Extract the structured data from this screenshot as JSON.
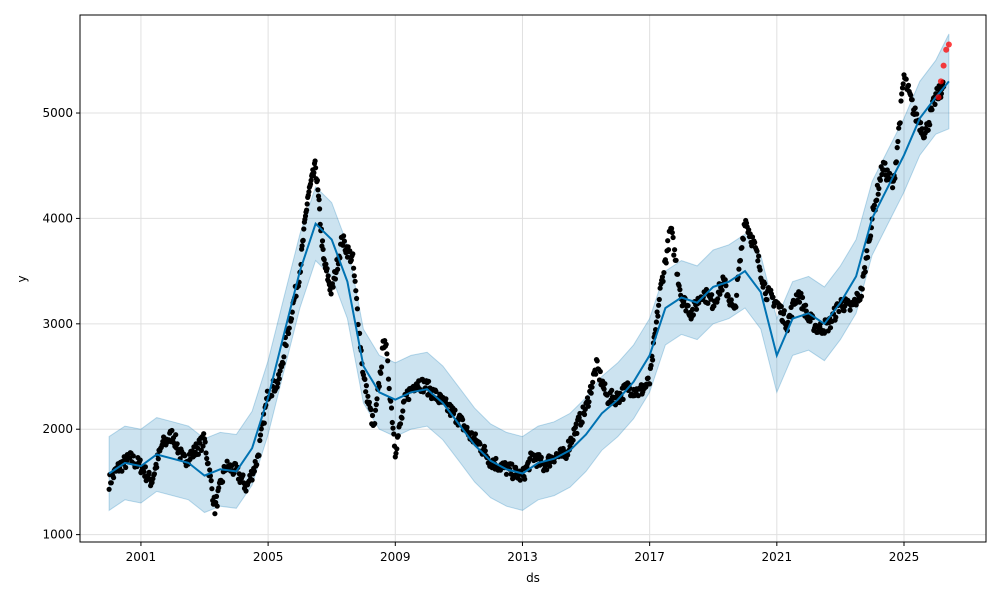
{
  "chart_data": {
    "type": "scatter",
    "title": "",
    "xlabel": "ds",
    "ylabel": "y",
    "xlim": [
      "1999-02-01",
      "2027-08-01"
    ],
    "ylim": [
      930,
      5930
    ],
    "xticks": [
      {
        "label": "2001",
        "value": "2001-01-01"
      },
      {
        "label": "2005",
        "value": "2005-01-01"
      },
      {
        "label": "2009",
        "value": "2009-01-01"
      },
      {
        "label": "2013",
        "value": "2013-01-01"
      },
      {
        "label": "2017",
        "value": "2017-01-01"
      },
      {
        "label": "2021",
        "value": "2021-01-01"
      },
      {
        "label": "2025",
        "value": "2025-01-01"
      }
    ],
    "yticks": [
      1000,
      2000,
      3000,
      4000,
      5000
    ],
    "grid": true,
    "colors": {
      "observed": "#000000",
      "forecast_points": "#ff0000",
      "trend_line": "#0072b2",
      "uncertainty_band": "#0072b2",
      "grid": "#e0e0e0"
    },
    "series": [
      {
        "role": "observed",
        "x": [
          "2000-01-01",
          "2000-05-01",
          "2000-09-01",
          "2001-01-01",
          "2001-05-01",
          "2001-09-01",
          "2002-01-01",
          "2002-05-01",
          "2002-09-01",
          "2003-01-01",
          "2003-05-01",
          "2003-09-01",
          "2004-01-01",
          "2004-05-01",
          "2004-09-01",
          "2005-01-01",
          "2005-05-01",
          "2005-09-01",
          "2006-01-01",
          "2006-04-01",
          "2006-07-01",
          "2006-10-01",
          "2007-01-01",
          "2007-05-01",
          "2007-09-01",
          "2008-01-01",
          "2008-05-01",
          "2008-09-01",
          "2009-01-01",
          "2009-05-01",
          "2009-09-01",
          "2010-01-01",
          "2010-05-01",
          "2010-09-01",
          "2011-01-01",
          "2011-05-01",
          "2011-09-01",
          "2012-01-01",
          "2012-05-01",
          "2012-09-01",
          "2013-01-01",
          "2013-05-01",
          "2013-09-01",
          "2014-01-01",
          "2014-05-01",
          "2014-09-01",
          "2015-01-01",
          "2015-05-01",
          "2015-09-01",
          "2016-01-01",
          "2016-05-01",
          "2016-09-01",
          "2017-01-01",
          "2017-05-01",
          "2017-09-01",
          "2018-01-01",
          "2018-05-01",
          "2018-09-01",
          "2019-01-01",
          "2019-05-01",
          "2019-09-01",
          "2020-01-01",
          "2020-05-01",
          "2020-09-01",
          "2021-01-01",
          "2021-05-01",
          "2021-09-01",
          "2022-01-01",
          "2022-05-01",
          "2022-09-01",
          "2023-01-01",
          "2023-05-01",
          "2023-09-01",
          "2024-01-01",
          "2024-05-01",
          "2024-09-01",
          "2025-01-01",
          "2025-05-01",
          "2025-09-01",
          "2026-01-01",
          "2026-04-01"
        ],
        "y": [
          1500,
          1650,
          1720,
          1650,
          1500,
          1850,
          1950,
          1700,
          1780,
          1900,
          1250,
          1650,
          1600,
          1450,
          1720,
          2350,
          2450,
          3000,
          3500,
          4200,
          4500,
          3600,
          3300,
          3800,
          3600,
          2500,
          2000,
          2900,
          1800,
          2300,
          2450,
          2400,
          2300,
          2200,
          2100,
          1950,
          1850,
          1700,
          1650,
          1600,
          1550,
          1750,
          1650,
          1750,
          1750,
          2000,
          2200,
          2600,
          2300,
          2300,
          2400,
          2350,
          2450,
          3300,
          3900,
          3250,
          3100,
          3300,
          3200,
          3400,
          3100,
          4000,
          3700,
          3300,
          3200,
          3000,
          3300,
          3050,
          2950,
          3000,
          3200,
          3150,
          3300,
          4000,
          4500,
          4300,
          5350,
          5000,
          4800,
          5150,
          5250
        ]
      },
      {
        "role": "forecast_points",
        "x": [
          "2026-02-01",
          "2026-03-01",
          "2026-04-01",
          "2026-05-01",
          "2026-06-01"
        ],
        "y": [
          5150,
          5300,
          5450,
          5600,
          5650
        ]
      },
      {
        "role": "trend_line",
        "x": [
          "2000-01-01",
          "2000-07-01",
          "2001-01-01",
          "2001-07-01",
          "2002-01-01",
          "2002-07-01",
          "2003-01-01",
          "2003-07-01",
          "2004-01-01",
          "2004-07-01",
          "2005-01-01",
          "2005-07-01",
          "2006-01-01",
          "2006-07-01",
          "2007-01-01",
          "2007-07-01",
          "2008-01-01",
          "2008-07-01",
          "2009-01-01",
          "2009-07-01",
          "2010-01-01",
          "2010-07-01",
          "2011-01-01",
          "2011-07-01",
          "2012-01-01",
          "2012-07-01",
          "2013-01-01",
          "2013-07-01",
          "2014-01-01",
          "2014-07-01",
          "2015-01-01",
          "2015-07-01",
          "2016-01-01",
          "2016-07-01",
          "2017-01-01",
          "2017-07-01",
          "2018-01-01",
          "2018-07-01",
          "2019-01-01",
          "2019-07-01",
          "2020-01-01",
          "2020-07-01",
          "2021-01-01",
          "2021-07-01",
          "2022-01-01",
          "2022-07-01",
          "2023-01-01",
          "2023-07-01",
          "2024-01-01",
          "2024-07-01",
          "2025-01-01",
          "2025-07-01",
          "2026-01-01",
          "2026-06-01"
        ],
        "y": [
          1580,
          1680,
          1650,
          1760,
          1720,
          1680,
          1560,
          1620,
          1600,
          1820,
          2300,
          2900,
          3500,
          3950,
          3800,
          3400,
          2600,
          2350,
          2280,
          2350,
          2380,
          2250,
          2050,
          1850,
          1700,
          1620,
          1580,
          1680,
          1720,
          1800,
          1950,
          2150,
          2280,
          2450,
          2700,
          3150,
          3250,
          3200,
          3350,
          3400,
          3500,
          3300,
          2700,
          3050,
          3100,
          3000,
          3200,
          3450,
          4000,
          4300,
          4600,
          4950,
          5150,
          5300
        ]
      },
      {
        "role": "uncertainty_band",
        "x": [
          "2000-01-01",
          "2000-07-01",
          "2001-01-01",
          "2001-07-01",
          "2002-01-01",
          "2002-07-01",
          "2003-01-01",
          "2003-07-01",
          "2004-01-01",
          "2004-07-01",
          "2005-01-01",
          "2005-07-01",
          "2006-01-01",
          "2006-07-01",
          "2007-01-01",
          "2007-07-01",
          "2008-01-01",
          "2008-07-01",
          "2009-01-01",
          "2009-07-01",
          "2010-01-01",
          "2010-07-01",
          "2011-01-01",
          "2011-07-01",
          "2012-01-01",
          "2012-07-01",
          "2013-01-01",
          "2013-07-01",
          "2014-01-01",
          "2014-07-01",
          "2015-01-01",
          "2015-07-01",
          "2016-01-01",
          "2016-07-01",
          "2017-01-01",
          "2017-07-01",
          "2018-01-01",
          "2018-07-01",
          "2019-01-01",
          "2019-07-01",
          "2020-01-01",
          "2020-07-01",
          "2021-01-01",
          "2021-07-01",
          "2022-01-01",
          "2022-07-01",
          "2023-01-01",
          "2023-07-01",
          "2024-01-01",
          "2024-07-01",
          "2025-01-01",
          "2025-07-01",
          "2026-01-01",
          "2026-06-01"
        ],
        "lower": [
          1230,
          1330,
          1300,
          1410,
          1370,
          1330,
          1210,
          1270,
          1250,
          1470,
          1950,
          2550,
          3150,
          3600,
          3450,
          3050,
          2250,
          2000,
          1930,
          2000,
          2030,
          1900,
          1700,
          1500,
          1350,
          1270,
          1230,
          1330,
          1370,
          1450,
          1600,
          1800,
          1930,
          2100,
          2350,
          2800,
          2900,
          2850,
          3000,
          3050,
          3150,
          2950,
          2350,
          2700,
          2750,
          2650,
          2850,
          3100,
          3650,
          3950,
          4250,
          4600,
          4800,
          4850
        ],
        "upper": [
          1930,
          2030,
          2000,
          2110,
          2070,
          2030,
          1910,
          1970,
          1950,
          2170,
          2650,
          3250,
          3850,
          4300,
          4150,
          3750,
          2950,
          2700,
          2630,
          2700,
          2730,
          2600,
          2400,
          2200,
          2050,
          1970,
          1930,
          2030,
          2070,
          2150,
          2300,
          2500,
          2630,
          2800,
          3050,
          3500,
          3600,
          3550,
          3700,
          3750,
          3850,
          3650,
          3050,
          3400,
          3450,
          3350,
          3550,
          3800,
          4350,
          4650,
          4950,
          5300,
          5500,
          5750
        ]
      }
    ]
  }
}
